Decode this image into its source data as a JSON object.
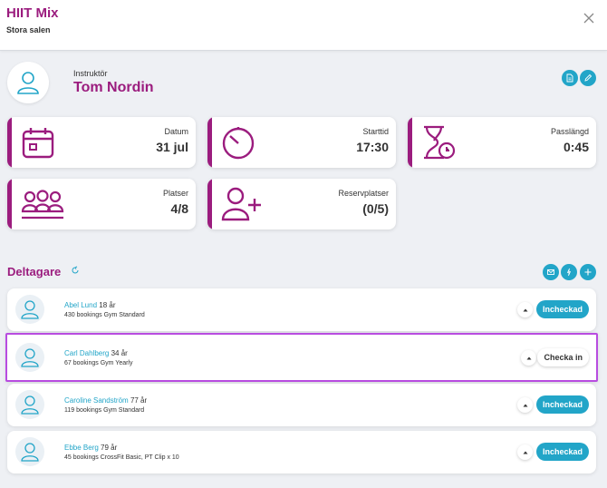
{
  "header": {
    "title": "HIIT Mix",
    "subtitle": "Stora salen"
  },
  "instructor": {
    "label": "Instruktör",
    "name": "Tom Nordin"
  },
  "info_cards": [
    {
      "label": "Datum",
      "value": "31 jul",
      "icon": "calendar-icon"
    },
    {
      "label": "Starttid",
      "value": "17:30",
      "icon": "stopwatch-icon"
    },
    {
      "label": "Passlängd",
      "value": "0:45",
      "icon": "hourglass-clock-icon"
    },
    {
      "label": "Platser",
      "value": "4/8",
      "icon": "group-icon"
    },
    {
      "label": "Reservplatser",
      "value": "(0/5)",
      "icon": "user-plus-icon"
    }
  ],
  "participants_section": {
    "title": "Deltagare"
  },
  "participants": [
    {
      "name": "Abel Lund",
      "age": "18 år",
      "info": "430 bookings Gym Standard",
      "status": "Incheckad",
      "checked_in": true
    },
    {
      "name": "Carl Dahlberg",
      "age": "34 år",
      "info": "67 bookings Gym Yearly",
      "status": "Checka in",
      "checked_in": false
    },
    {
      "name": "Caroline Sandström",
      "age": "77 år",
      "info": "119 bookings Gym Standard",
      "status": "Incheckad",
      "checked_in": true
    },
    {
      "name": "Ebbe Berg",
      "age": "79 år",
      "info": "45 bookings CrossFit Basic, PT Clip x 10",
      "status": "Incheckad",
      "checked_in": true
    }
  ],
  "colors": {
    "brand": "#9b1c7e",
    "accent": "#22a5c8",
    "highlight": "#b84ce0"
  }
}
